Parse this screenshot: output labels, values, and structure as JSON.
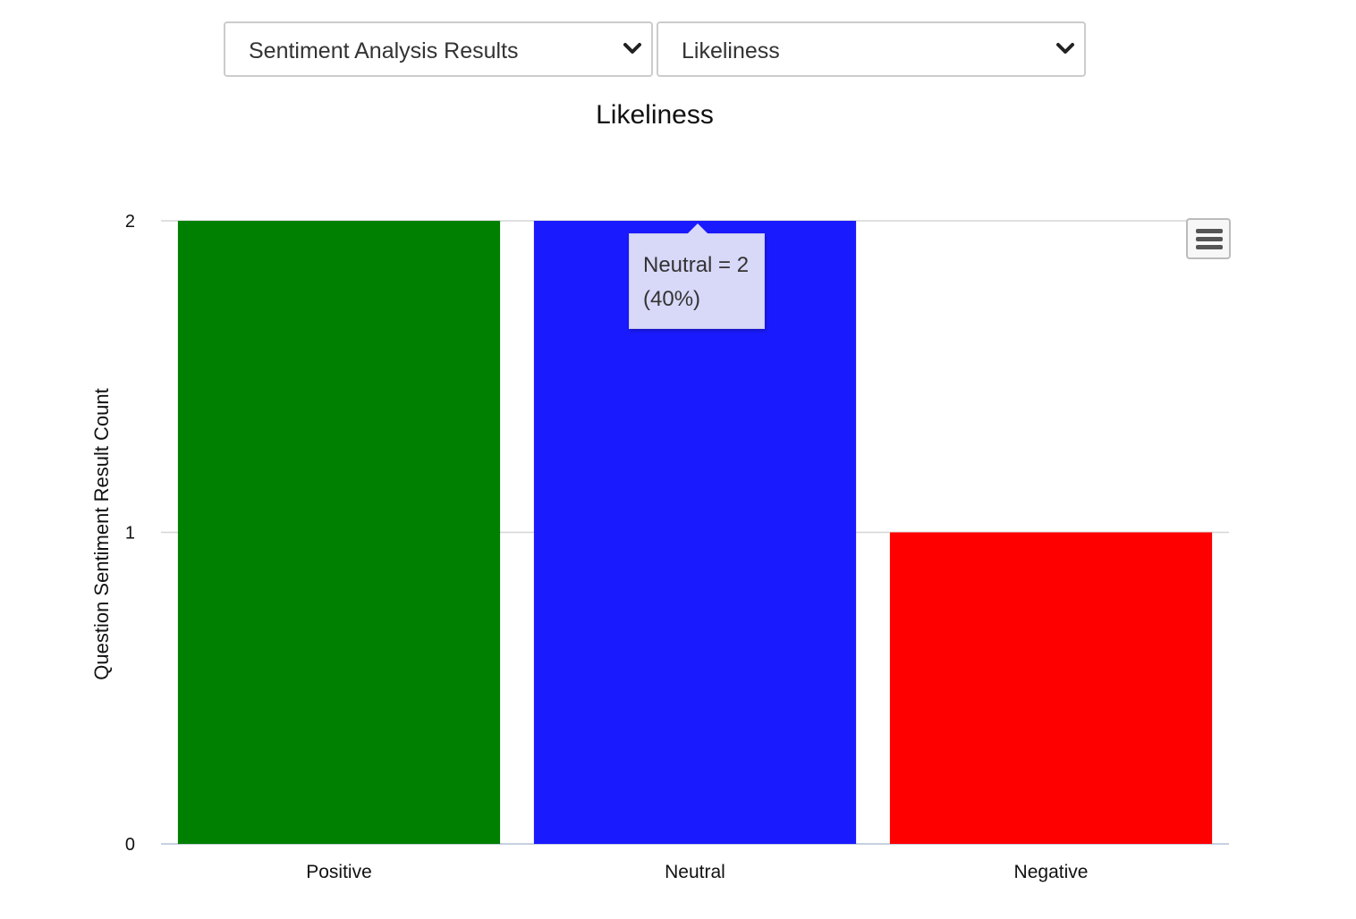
{
  "filters": {
    "report": {
      "selected": "Sentiment Analysis Results",
      "icon": "chevron-down-icon"
    },
    "question": {
      "selected": "Likeliness",
      "icon": "chevron-down-icon"
    }
  },
  "chart_menu": {
    "icon": "hamburger-menu-icon"
  },
  "tooltip": {
    "line1": "Neutral = 2",
    "line2": "(40%)"
  },
  "chart_data": {
    "type": "bar",
    "title": "Likeliness",
    "xlabel": "",
    "ylabel": "Question Sentiment Result Count",
    "categories": [
      "Positive",
      "Neutral",
      "Negative"
    ],
    "values": [
      2,
      2,
      1
    ],
    "colors": [
      "#008000",
      "#1a1aff",
      "#ff0000"
    ],
    "ylim": [
      0,
      2
    ],
    "yticks": [
      0,
      1,
      2
    ],
    "grid": true,
    "legend": "none"
  }
}
